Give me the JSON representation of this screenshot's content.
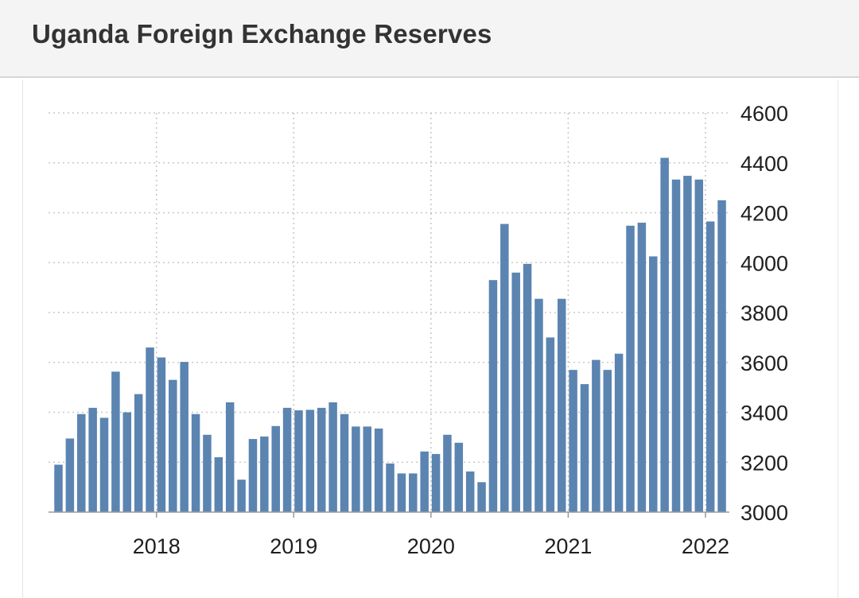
{
  "header": {
    "title": "Uganda Foreign Exchange Reserves"
  },
  "colors": {
    "bar": "#5b84b1",
    "grid": "#c8c8c8",
    "axis": "#9a9a9a",
    "header_bg": "#f4f4f4",
    "title": "#333333"
  },
  "chart_data": {
    "type": "bar",
    "title": "Uganda Foreign Exchange Reserves",
    "xlabel": "",
    "ylabel": "",
    "ylim": [
      3000,
      4600
    ],
    "yticks": [
      3000,
      3200,
      3400,
      3600,
      3800,
      4000,
      4200,
      4400,
      4600
    ],
    "xticks": [
      "2018",
      "2019",
      "2020",
      "2021",
      "2022"
    ],
    "grid": true,
    "y_axis_position": "right",
    "start": "2017-04",
    "frequency": "monthly",
    "values": [
      3190,
      3295,
      3393,
      3418,
      3378,
      3563,
      3400,
      3473,
      3660,
      3620,
      3530,
      3602,
      3393,
      3310,
      3220,
      3440,
      3130,
      3293,
      3303,
      3345,
      3418,
      3408,
      3410,
      3418,
      3440,
      3393,
      3343,
      3343,
      3335,
      3195,
      3155,
      3155,
      3243,
      3233,
      3310,
      3278,
      3163,
      3120,
      3930,
      4155,
      3960,
      3995,
      3855,
      3700,
      3855,
      3570,
      3513,
      3610,
      3570,
      3635,
      4148,
      4160,
      4025,
      4420,
      4333,
      4348,
      4333,
      4165,
      4250
    ]
  }
}
